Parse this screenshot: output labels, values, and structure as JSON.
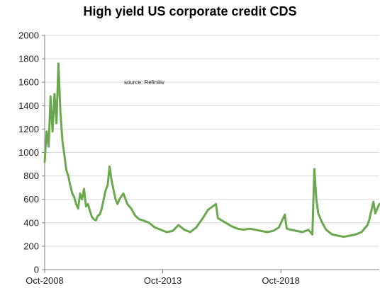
{
  "chart_data": {
    "type": "line",
    "title": "High yield US corporate credit CDS",
    "annotation": "source:  Refinitiv",
    "xlabel": "",
    "ylabel": "",
    "ylim": [
      0,
      2000
    ],
    "yticks": [
      0,
      200,
      400,
      600,
      800,
      1000,
      1200,
      1400,
      1600,
      1800,
      2000
    ],
    "x_range": [
      "2008-10",
      "2022-12"
    ],
    "xticks": [
      {
        "label": "Oct-2008",
        "date": "2008-10"
      },
      {
        "label": "Oct-2013",
        "date": "2013-10"
      },
      {
        "label": "Oct-2018",
        "date": "2018-10"
      }
    ],
    "grid": {
      "horizontal": true,
      "vertical": false
    },
    "legend": "none",
    "line_color": "#6aa84f",
    "series": [
      {
        "x": [
          "2008-10",
          "2008-11",
          "2008-12",
          "2009-01",
          "2009-02",
          "2009-03",
          "2009-04",
          "2009-05",
          "2009-06",
          "2009-07",
          "2009-08",
          "2009-09",
          "2009-10",
          "2009-11",
          "2009-12",
          "2010-01",
          "2010-02",
          "2010-03",
          "2010-04",
          "2010-05",
          "2010-06",
          "2010-07",
          "2010-08",
          "2010-09",
          "2010-10",
          "2010-11",
          "2010-12",
          "2011-01",
          "2011-02",
          "2011-03",
          "2011-04",
          "2011-05",
          "2011-06",
          "2011-07",
          "2011-08",
          "2011-09",
          "2011-10",
          "2011-11",
          "2011-12",
          "2012-02",
          "2012-04",
          "2012-06",
          "2012-08",
          "2012-10",
          "2012-12",
          "2013-03",
          "2013-06",
          "2013-09",
          "2013-12",
          "2014-03",
          "2014-06",
          "2014-09",
          "2014-12",
          "2015-03",
          "2015-06",
          "2015-09",
          "2016-01",
          "2016-02",
          "2016-04",
          "2016-06",
          "2016-09",
          "2016-12",
          "2017-03",
          "2017-06",
          "2017-09",
          "2017-12",
          "2018-03",
          "2018-06",
          "2018-09",
          "2018-12",
          "2019-01",
          "2019-03",
          "2019-06",
          "2019-09",
          "2019-12",
          "2020-02",
          "2020-03",
          "2020-04",
          "2020-05",
          "2020-07",
          "2020-09",
          "2020-12",
          "2021-03",
          "2021-06",
          "2021-09",
          "2021-12",
          "2022-03",
          "2022-06",
          "2022-07",
          "2022-09",
          "2022-10",
          "2022-12"
        ],
        "values": [
          920,
          1180,
          1050,
          1480,
          1180,
          1500,
          1250,
          1760,
          1350,
          1100,
          980,
          850,
          800,
          720,
          650,
          620,
          560,
          520,
          650,
          600,
          690,
          540,
          560,
          500,
          450,
          430,
          420,
          460,
          470,
          520,
          600,
          680,
          720,
          880,
          760,
          680,
          600,
          560,
          600,
          650,
          560,
          520,
          460,
          430,
          420,
          400,
          360,
          340,
          320,
          330,
          380,
          340,
          320,
          360,
          430,
          510,
          560,
          440,
          420,
          400,
          370,
          350,
          340,
          350,
          340,
          330,
          320,
          330,
          360,
          470,
          350,
          340,
          330,
          320,
          340,
          300,
          860,
          600,
          480,
          400,
          340,
          300,
          290,
          280,
          290,
          300,
          320,
          380,
          430,
          580,
          480,
          560
        ]
      }
    ]
  }
}
